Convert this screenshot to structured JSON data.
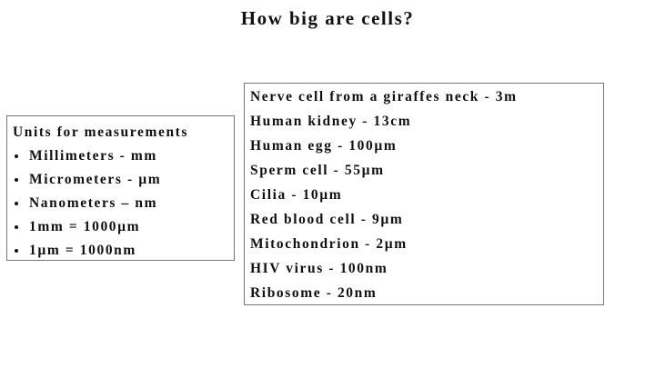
{
  "title": "How big are cells?",
  "units_box": {
    "heading": "Units for measurements",
    "items": [
      "Millimeters - mm",
      "Micrometers - µm",
      "Nanometers – nm",
      "1mm = 1000µm",
      "1µm = 1000nm"
    ]
  },
  "sizes_box": {
    "items": [
      "Nerve cell from a giraffes neck - 3m",
      "Human kidney - 13cm",
      "Human egg - 100µm",
      "Sperm cell - 55µm",
      "Cilia - 10µm",
      "Red blood cell - 9µm",
      "Mitochondrion - 2µm",
      "HIV virus - 100nm",
      "Ribosome - 20nm"
    ]
  }
}
